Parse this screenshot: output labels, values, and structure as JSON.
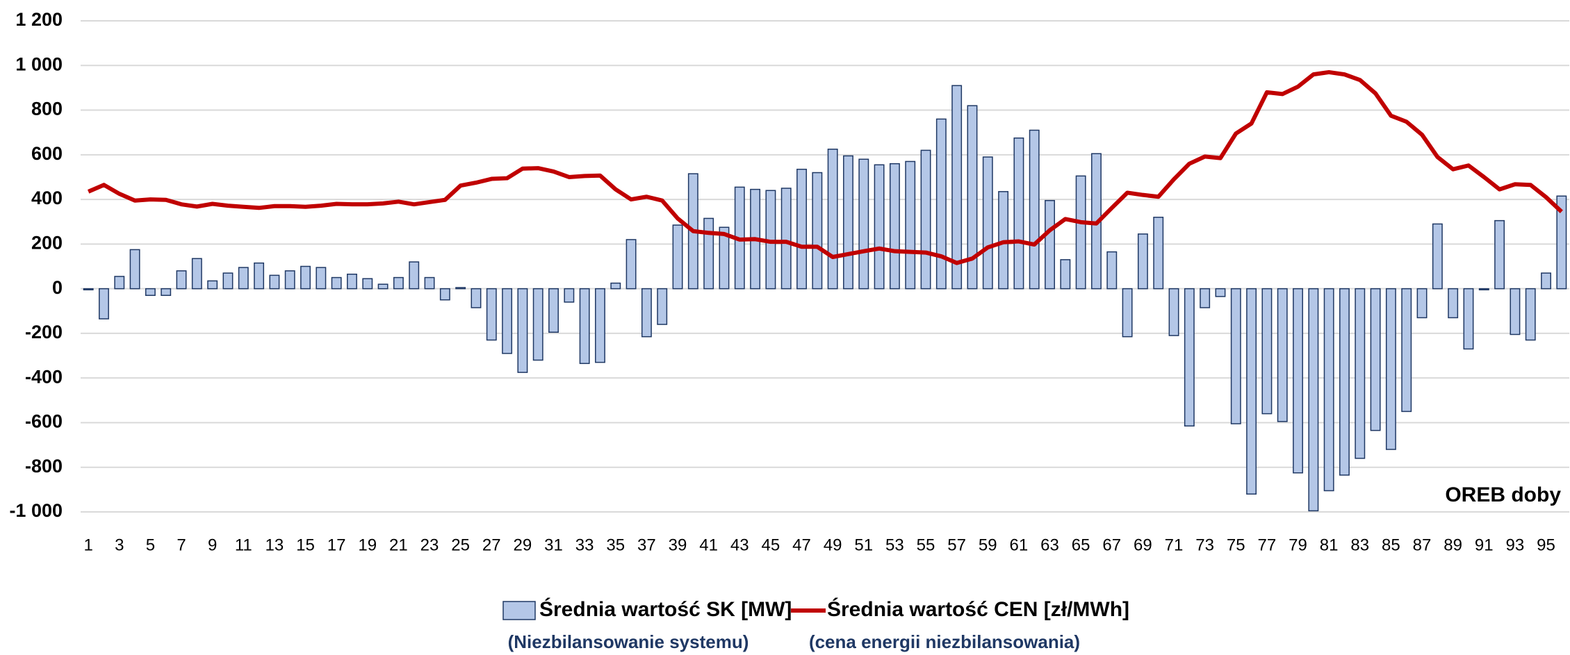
{
  "chart_data": {
    "type": "bar-line",
    "annotation": "OREB doby",
    "categories": [
      "1",
      null,
      "3",
      null,
      "5",
      null,
      "7",
      null,
      "9",
      null,
      "11",
      null,
      "13",
      null,
      "15",
      null,
      "17",
      null,
      "19",
      null,
      "21",
      null,
      "23",
      null,
      "25",
      null,
      "27",
      null,
      "29",
      null,
      "31",
      null,
      "33",
      null,
      "35",
      null,
      "37",
      null,
      "39",
      null,
      "41",
      null,
      "43",
      null,
      "45",
      null,
      "47",
      null,
      "49",
      null,
      "51",
      null,
      "53",
      null,
      "55",
      null,
      "57",
      null,
      "59",
      null,
      "61",
      null,
      "63",
      null,
      "65",
      null,
      "67",
      null,
      "69",
      null,
      "71",
      null,
      "73",
      null,
      "75",
      null,
      "77",
      null,
      "79",
      null,
      "81",
      null,
      "83",
      null,
      "85",
      null,
      "87",
      null,
      "89",
      null,
      "91",
      null,
      "93",
      null,
      "95",
      null
    ],
    "series": [
      {
        "name": "Średnia wartość SK [MW]",
        "description": "(Niezbilansowanie systemu)",
        "type": "bar",
        "color": "#b4c7e7",
        "edge": "#1f3864",
        "values": [
          -5,
          -135,
          55,
          175,
          -30,
          -30,
          80,
          135,
          35,
          70,
          95,
          115,
          60,
          80,
          100,
          95,
          50,
          65,
          45,
          20,
          50,
          120,
          50,
          -50,
          5,
          -85,
          -230,
          -290,
          -375,
          -320,
          -195,
          -60,
          -335,
          -330,
          25,
          220,
          -215,
          -160,
          285,
          515,
          315,
          275,
          455,
          445,
          440,
          450,
          535,
          520,
          625,
          595,
          580,
          555,
          560,
          570,
          620,
          760,
          910,
          820,
          590,
          435,
          675,
          710,
          395,
          130,
          505,
          605,
          165,
          -215,
          245,
          320,
          -210,
          -615,
          -85,
          -35,
          -605,
          -920,
          -560,
          -595,
          -825,
          -995,
          -905,
          -835,
          -760,
          -635,
          -720,
          -550,
          -130,
          290,
          -130,
          -270,
          -5,
          305,
          -205,
          -230,
          70,
          415
        ]
      },
      {
        "name": "Średnia wartość CEN [zł/MWh]",
        "description": "(cena energii niezbilansowania)",
        "type": "line",
        "color": "#c00000",
        "values": [
          435,
          465,
          425,
          395,
          400,
          398,
          378,
          368,
          380,
          372,
          367,
          362,
          370,
          370,
          367,
          372,
          380,
          378,
          378,
          382,
          390,
          378,
          388,
          398,
          462,
          475,
          492,
          495,
          538,
          540,
          525,
          500,
          505,
          507,
          445,
          400,
          412,
          395,
          315,
          258,
          250,
          245,
          220,
          222,
          210,
          210,
          188,
          188,
          142,
          155,
          168,
          180,
          168,
          165,
          162,
          145,
          115,
          135,
          185,
          208,
          212,
          198,
          262,
          312,
          298,
          292,
          362,
          430,
          420,
          412,
          490,
          560,
          592,
          585,
          695,
          740,
          880,
          872,
          905,
          960,
          970,
          960,
          935,
          875,
          775,
          748,
          690,
          590,
          535,
          552,
          500,
          445,
          468,
          465,
          410,
          345
        ]
      }
    ],
    "ylim": [
      -1000,
      1200
    ],
    "yticks": [
      {
        "value": -1000,
        "label": "-1 000"
      },
      -800,
      -600,
      -400,
      -200,
      0,
      200,
      400,
      600,
      800,
      {
        "value": 1000,
        "label": "1 000"
      },
      {
        "value": 1200,
        "label": "1 200"
      }
    ],
    "grid": true
  }
}
